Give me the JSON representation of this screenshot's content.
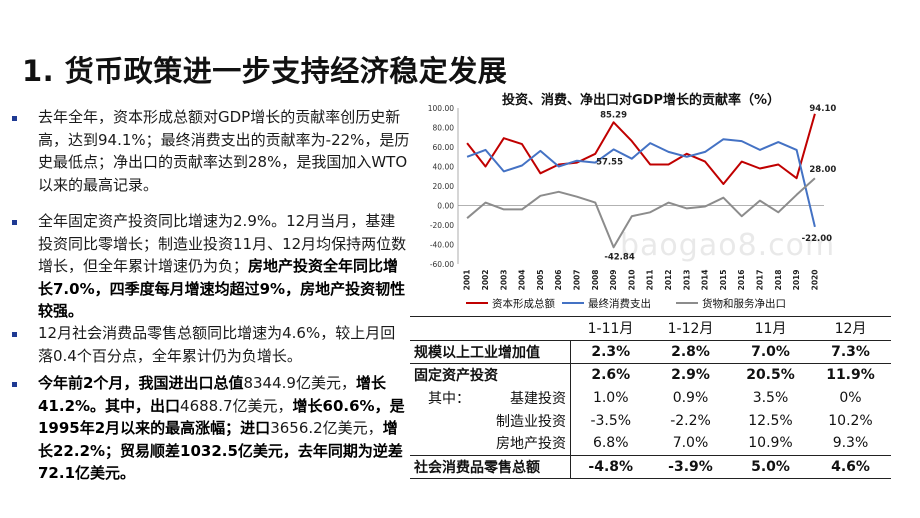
{
  "page": {
    "title": "1. 货币政策进一步支持经济稳定发展",
    "watermark": "baogao8.com"
  },
  "bullets": [
    {
      "segments": [
        {
          "t": "去年全年，资本形成总额对GDP增长的贡献率创历史新高，达到94.1%；最终消费支出的贡献率为-22%，是历史最低点；净出口的贡献率达到28%，是我国加入WTO以来的最高记录。",
          "b": false
        }
      ]
    },
    {
      "segments": [
        {
          "t": "全年固定资产投资同比增速为2.9%。12月当月，基建投资同比零增长；制造业投资11月、12月均保持两位数增长，但全年累计增速仍为负；",
          "b": false
        },
        {
          "t": "房地产投资全年同比增长7.0%，四季度每月增速均超过9%，房地产投资韧性较强。",
          "b": true
        }
      ]
    },
    {
      "segments": [
        {
          "t": "12月社会消费品零售总额同比增速为4.6%，较上月回落0.4个百分点，全年累计仍为负增长。",
          "b": false
        }
      ]
    },
    {
      "segments": [
        {
          "t": "今年前2个月，我国进出口总值",
          "b": true
        },
        {
          "t": "8344.9亿美元，",
          "b": false
        },
        {
          "t": "增长41.2%。其中，出口",
          "b": true
        },
        {
          "t": "4688.7亿美元，",
          "b": false
        },
        {
          "t": "增长60.6%，是1995年2月以来的最高涨幅；进口",
          "b": true
        },
        {
          "t": "3656.2亿美元，",
          "b": false
        },
        {
          "t": "增长22.2%；贸易顺差1032.5亿美元，去年同期为逆差72.1亿美元。",
          "b": true
        }
      ]
    }
  ],
  "chart_data": {
    "type": "line",
    "title": "投资、消费、净出口对GDP增长的贡献率（%）",
    "categories": [
      "2001",
      "2002",
      "2003",
      "2004",
      "2005",
      "2006",
      "2007",
      "2008",
      "2009",
      "2010",
      "2011",
      "2012",
      "2013",
      "2014",
      "2015",
      "2016",
      "2017",
      "2018",
      "2019",
      "2020"
    ],
    "ylim": [
      -60,
      100
    ],
    "yticks": [
      "100.00",
      "80.00",
      "60.00",
      "40.00",
      "20.00",
      "0.00",
      "-20.00",
      "-40.00",
      "-60.00"
    ],
    "series": [
      {
        "name": "资本形成总额",
        "color": "#c00000",
        "values": [
          64,
          40,
          69,
          63,
          33,
          42,
          44,
          53,
          85.29,
          66,
          42,
          42,
          53,
          45,
          22,
          45,
          38,
          42,
          28,
          94.1
        ]
      },
      {
        "name": "最终消费支出",
        "color": "#4472c4",
        "values": [
          50,
          57,
          35,
          41,
          56,
          40,
          46,
          44,
          57.55,
          48,
          64,
          55,
          50,
          55,
          68,
          66,
          57,
          65,
          57,
          -22
        ]
      },
      {
        "name": "货物和服务净出口",
        "color": "#8c8c8c",
        "values": [
          -13,
          3,
          -4,
          -4,
          10,
          14,
          9,
          3,
          -42.84,
          -11,
          -7,
          3,
          -3,
          -1,
          8,
          -11,
          5,
          -7,
          11,
          28
        ]
      }
    ],
    "annotations": [
      "85.29",
      "57.55",
      "-42.84",
      "94.10",
      "28.00",
      "-22.00"
    ]
  },
  "table": {
    "headers": [
      "",
      "1-11月",
      "1-12月",
      "11月",
      "12月"
    ],
    "rows": [
      {
        "label": "规模以上工业增加值",
        "indent": "",
        "values": [
          "2.3%",
          "2.8%",
          "7.0%",
          "7.3%"
        ],
        "bold": true
      },
      {
        "label": "固定资产投资",
        "indent": "",
        "values": [
          "2.6%",
          "2.9%",
          "20.5%",
          "11.9%"
        ],
        "bold": true
      },
      {
        "label": "基建投资",
        "indent": "其中：",
        "values": [
          "1.0%",
          "0.9%",
          "3.5%",
          "0%"
        ],
        "bold": false
      },
      {
        "label": "制造业投资",
        "indent": "",
        "values": [
          "-3.5%",
          "-2.2%",
          "12.5%",
          "10.2%"
        ],
        "bold": false
      },
      {
        "label": "房地产投资",
        "indent": "",
        "values": [
          "6.8%",
          "7.0%",
          "10.9%",
          "9.3%"
        ],
        "bold": false
      },
      {
        "label": "社会消费品零售总额",
        "indent": "",
        "values": [
          "-4.8%",
          "-3.9%",
          "5.0%",
          "4.6%"
        ],
        "bold": true
      }
    ]
  }
}
